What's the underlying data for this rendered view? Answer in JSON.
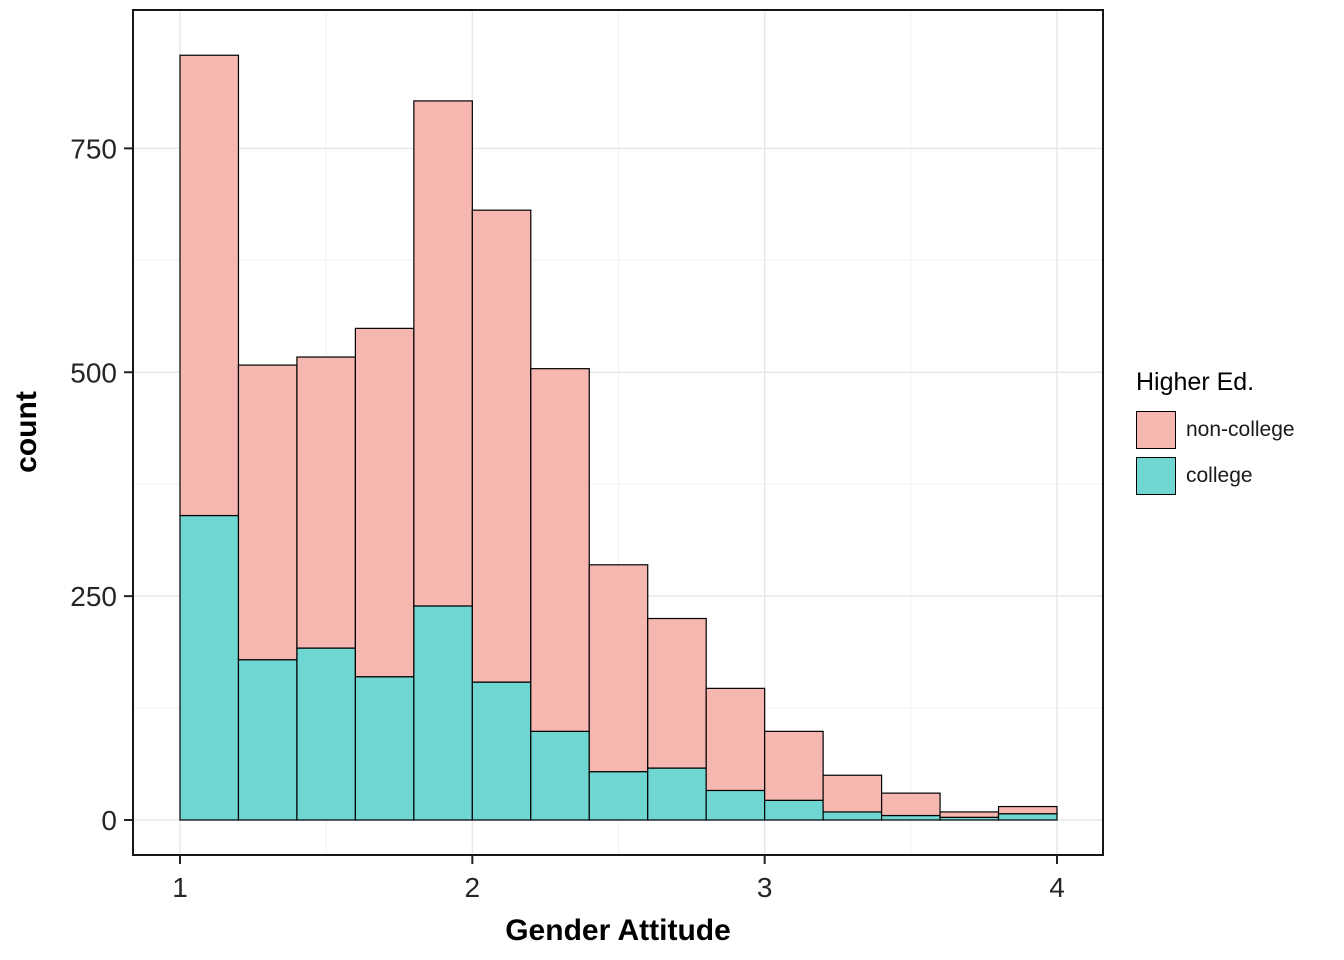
{
  "chart_data": {
    "type": "bar",
    "subtype": "stacked-histogram",
    "title": "",
    "xlabel": "Gender Attitude",
    "ylabel": "count",
    "bins": {
      "start": 1.0,
      "width": 0.2,
      "count": 15
    },
    "stack_order": [
      "college",
      "non-college"
    ],
    "axes": {
      "x_ticks": [
        1,
        2,
        3,
        4
      ],
      "x_minor": [
        1.5,
        2.5,
        3.5
      ],
      "y_ticks": [
        0,
        250,
        500,
        750
      ],
      "y_minor": [
        125,
        375,
        625
      ],
      "xlim": [
        0.85,
        4.15
      ],
      "ylim": [
        0,
        860
      ],
      "grid": "on",
      "panel_border": "#171717",
      "panel_background": "#ffffff"
    },
    "legend": {
      "title": "Higher Ed.",
      "position": "right",
      "entries": [
        {
          "label": "non-college",
          "color": "#F6B7B1"
        },
        {
          "label": "college",
          "color": "#6FD6D1"
        }
      ]
    },
    "series": [
      {
        "name": "college",
        "color": "#6FD6D1",
        "values": [
          340,
          179,
          192,
          160,
          239,
          154,
          99,
          54,
          58,
          33,
          22,
          9,
          5,
          3,
          7
        ]
      },
      {
        "name": "non-college",
        "color": "#F6B7B1",
        "values": [
          514,
          329,
          325,
          389,
          564,
          527,
          405,
          231,
          167,
          114,
          77,
          41,
          25,
          6,
          8
        ]
      }
    ],
    "totals": [
      854,
      508,
      517,
      549,
      803,
      681,
      504,
      285,
      225,
      147,
      99,
      50,
      30,
      9,
      15
    ],
    "colors": {
      "bar_stroke": "#000000",
      "grid_major": "#E7E7E7",
      "grid_minor": "#F3F3F3"
    }
  }
}
